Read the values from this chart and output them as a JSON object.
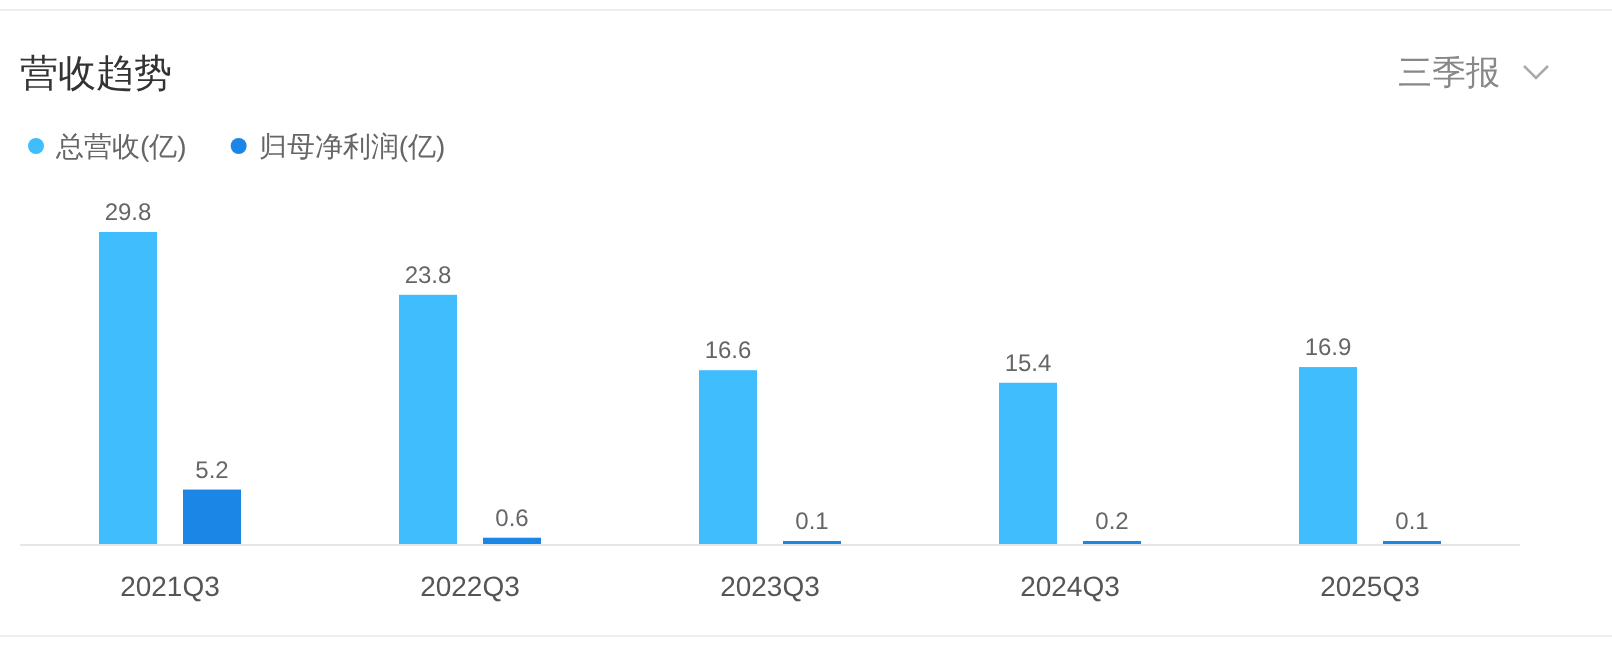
{
  "chart_data": {
    "type": "bar",
    "title": "营收趋势",
    "annotations": [
      "三季报"
    ],
    "categories": [
      "2021Q3",
      "2022Q3",
      "2023Q3",
      "2024Q3",
      "2025Q3"
    ],
    "series": [
      {
        "name": "总营收(亿)",
        "color": "#3fbdfd",
        "values": [
          29.8,
          23.8,
          16.6,
          15.4,
          16.9
        ]
      },
      {
        "name": "归母净利润(亿)",
        "color": "#1b86e6",
        "values": [
          5.2,
          0.6,
          0.1,
          0.2,
          0.1
        ]
      }
    ],
    "data_labels": true,
    "legend": "top left"
  }
}
